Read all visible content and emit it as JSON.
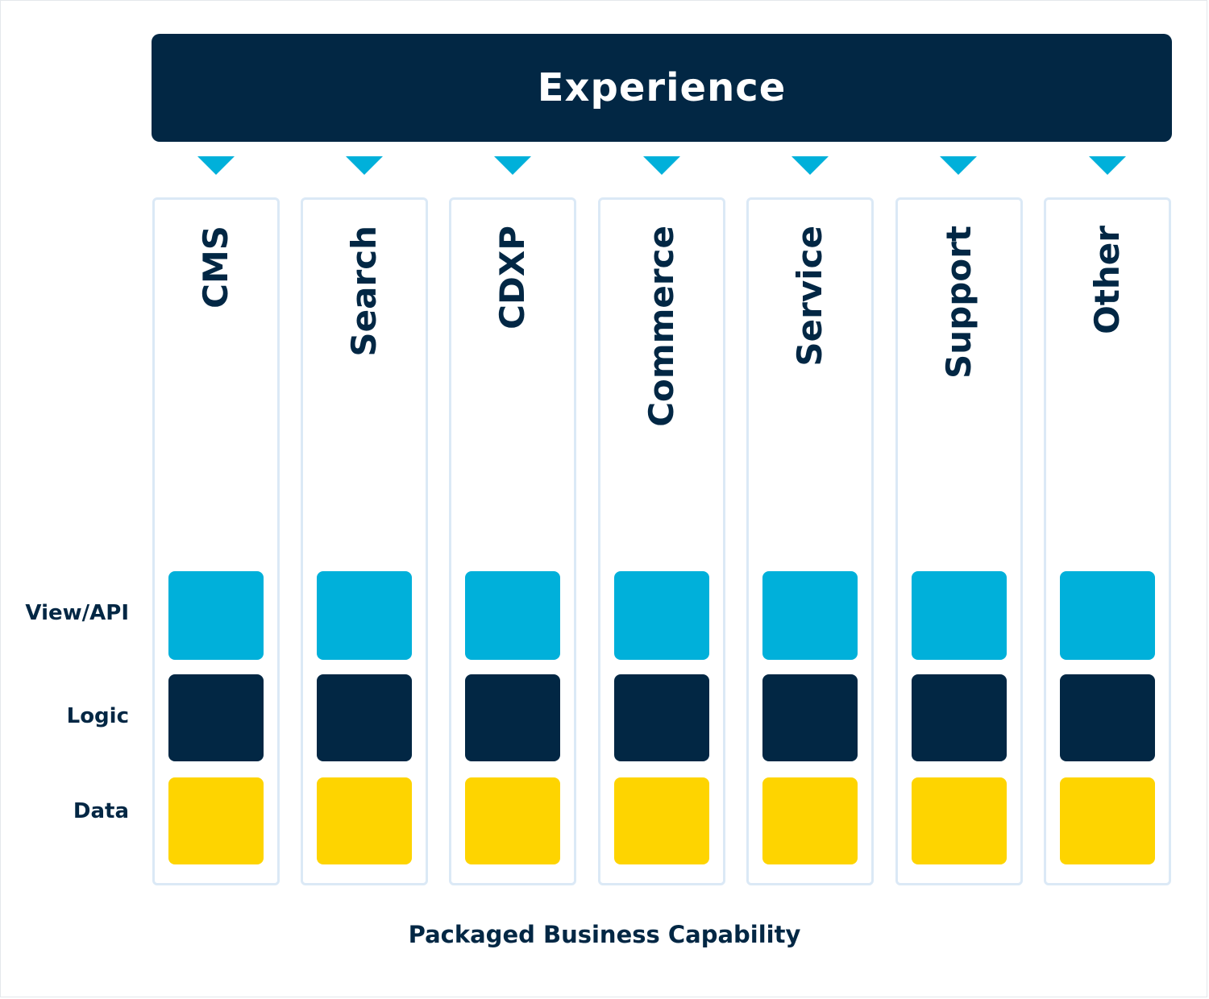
{
  "experience_label": "Experience",
  "footer_label": "Packaged Business Capability",
  "row_labels": {
    "view_api": "View/API",
    "logic": "Logic",
    "data": "Data"
  },
  "columns": [
    {
      "label": "CMS"
    },
    {
      "label": "Search"
    },
    {
      "label": "CDXP"
    },
    {
      "label": "Commerce"
    },
    {
      "label": "Service"
    },
    {
      "label": "Support"
    },
    {
      "label": "Other"
    }
  ],
  "colors": {
    "navy": "#022744",
    "cyan": "#00b0da",
    "yellow": "#fed400",
    "column_border": "#dbe9f6"
  }
}
